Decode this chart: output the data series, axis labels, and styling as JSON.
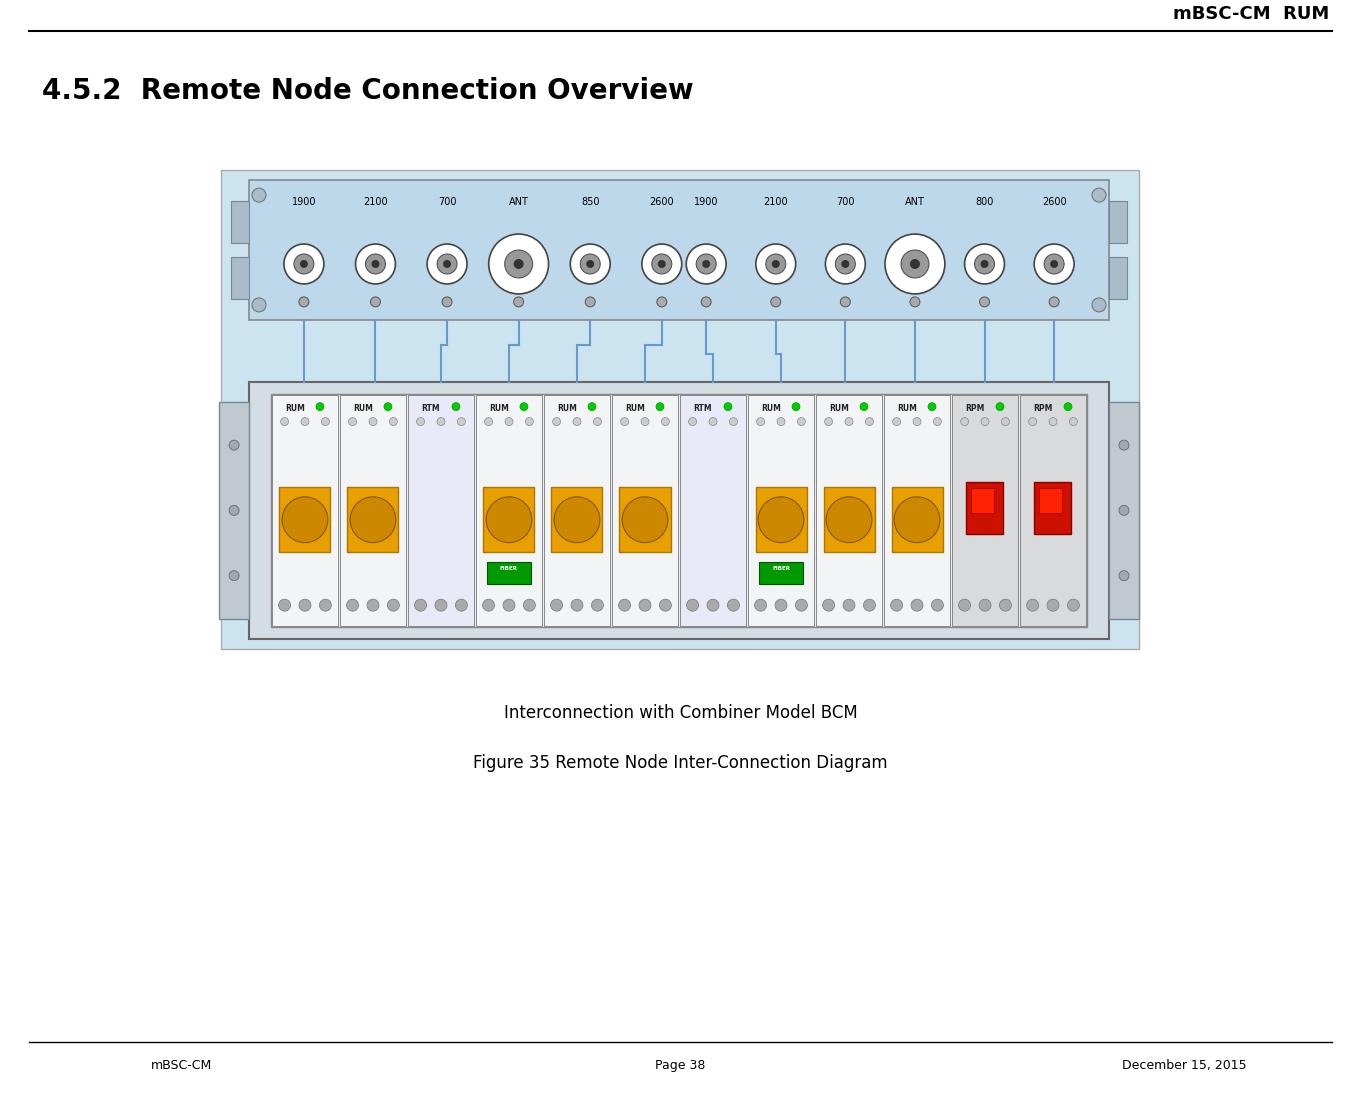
{
  "header_text": "mBSC-CM  RUM",
  "section_title": "4.5.2  Remote Node Connection Overview",
  "caption1": "Interconnection with Combiner Model BCM",
  "caption2": "Figure 35 Remote Node Inter-Connection Diagram",
  "footer_left": "mBSC-CM",
  "footer_center": "Page 38",
  "footer_right": "December 15, 2015",
  "bg_color": "#ffffff",
  "top_labels_g1": [
    "1900",
    "2100",
    "700",
    "ANT",
    "850",
    "2600"
  ],
  "top_labels_g2": [
    "1900",
    "2100",
    "700",
    "ANT",
    "800",
    "2600"
  ],
  "module_labels": [
    "RUM",
    "RUM",
    "RTM",
    "RUM",
    "RUM",
    "RUM",
    "RTM",
    "RUM",
    "RUM",
    "RUM",
    "RPM",
    "RPM"
  ],
  "fiber_modules": [
    3,
    7
  ],
  "gold_modules": [
    0,
    1,
    3,
    4,
    5,
    7,
    8,
    9
  ],
  "diagram_light_blue": "#cce4f0",
  "top_panel_blue": "#bdd8ea",
  "bot_panel_gray": "#c8cdd4",
  "connector_line_color": "#6699cc",
  "gold_color": "#E8A000",
  "red_switch_color": "#CC1100",
  "fiber_green": "#00AA00",
  "header_fontsize": 13,
  "section_title_fontsize": 20,
  "caption_fontsize": 12,
  "footer_fontsize": 9
}
